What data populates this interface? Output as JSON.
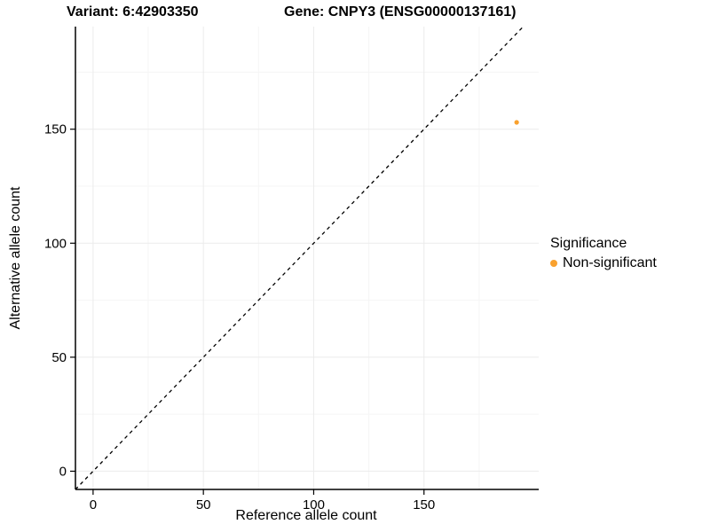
{
  "header": {
    "variant_title": "Variant: 6:42903350",
    "gene_title": "Gene: CNPY3 (ENSG00000137161)"
  },
  "axes": {
    "x_label": "Reference allele count",
    "y_label": "Alternative allele count"
  },
  "legend": {
    "title": "Significance",
    "entries": [
      {
        "label": "Non-significant",
        "color": "#F9A12E"
      }
    ]
  },
  "colors": {
    "point": "#F9A12E",
    "grid_major": "#EBEBEB",
    "grid_minor": "#F5F5F5",
    "axis": "#000000",
    "identity_line": "#000000",
    "background": "#FFFFFF"
  },
  "chart_data": {
    "type": "scatter",
    "title": "Variant: 6:42903350   Gene: CNPY3 (ENSG00000137161)",
    "xlabel": "Reference allele count",
    "ylabel": "Alternative allele count",
    "xlim": [
      -8,
      202
    ],
    "ylim": [
      -8,
      195
    ],
    "xticks": [
      0,
      50,
      100,
      150
    ],
    "yticks": [
      0,
      50,
      100,
      150
    ],
    "minor_xticks": [
      25,
      75,
      125,
      175
    ],
    "minor_yticks": [
      25,
      75,
      125,
      175
    ],
    "grid": true,
    "legend_position": "right",
    "identity_line": {
      "slope": 1,
      "intercept": 0,
      "style": "dashed",
      "color": "#000000"
    },
    "series": [
      {
        "name": "Non-significant",
        "color": "#F9A12E",
        "points": [
          {
            "x": 192,
            "y": 153
          }
        ]
      }
    ]
  }
}
